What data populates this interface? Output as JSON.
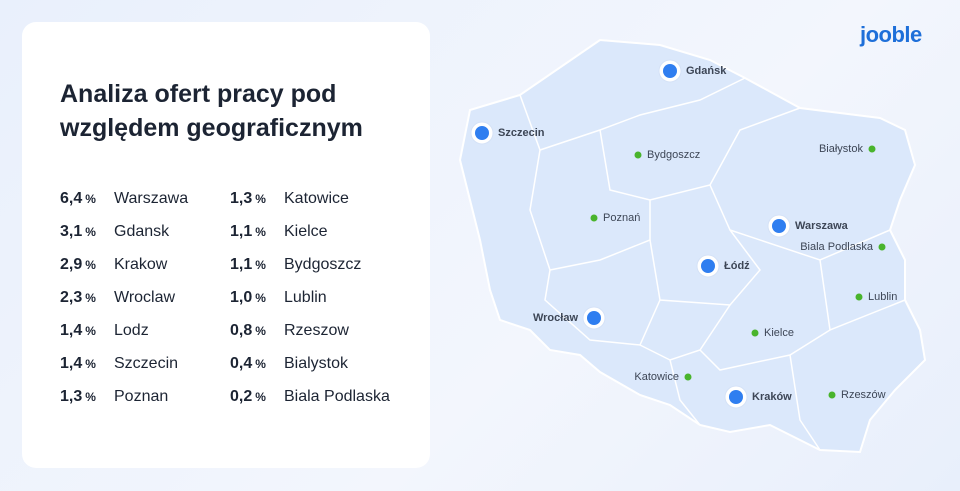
{
  "logo": "jooble",
  "header": {
    "title_lines": [
      "Analiza ofert pracy pod",
      "względem geograficznym"
    ]
  },
  "table": {
    "columns": [
      [
        {
          "value": "6,4",
          "unit": "%",
          "city": "Warszawa"
        },
        {
          "value": "3,1",
          "unit": "%",
          "city": "Gdansk"
        },
        {
          "value": "2,9",
          "unit": "%",
          "city": "Krakow"
        },
        {
          "value": "2,3",
          "unit": "%",
          "city": "Wroclaw"
        },
        {
          "value": "1,4",
          "unit": "%",
          "city": "Lodz"
        },
        {
          "value": "1,4",
          "unit": "%",
          "city": "Szczecin"
        },
        {
          "value": "1,3",
          "unit": "%",
          "city": "Poznan"
        }
      ],
      [
        {
          "value": "1,3",
          "unit": "%",
          "city": "Katowice"
        },
        {
          "value": "1,1",
          "unit": "%",
          "city": "Kielce"
        },
        {
          "value": "1,1",
          "unit": "%",
          "city": "Bydgoszcz"
        },
        {
          "value": "1,0",
          "unit": "%",
          "city": "Lublin"
        },
        {
          "value": "0,8",
          "unit": "%",
          "city": "Rzeszow"
        },
        {
          "value": "0,4",
          "unit": "%",
          "city": "Bialystok"
        },
        {
          "value": "0,2",
          "unit": "%",
          "city": "Biala Podlaska"
        }
      ]
    ]
  },
  "map": {
    "cities": [
      {
        "label": "Gdańsk",
        "kind": "major"
      },
      {
        "label": "Szczecin",
        "kind": "major"
      },
      {
        "label": "Warszawa",
        "kind": "major"
      },
      {
        "label": "Łódź",
        "kind": "major"
      },
      {
        "label": "Wrocław",
        "kind": "major"
      },
      {
        "label": "Kraków",
        "kind": "major"
      },
      {
        "label": "Bydgoszcz",
        "kind": "minor"
      },
      {
        "label": "Białystok",
        "kind": "minor"
      },
      {
        "label": "Poznań",
        "kind": "minor"
      },
      {
        "label": "Biala Podlaska",
        "kind": "minor"
      },
      {
        "label": "Lublin",
        "kind": "minor"
      },
      {
        "label": "Kielce",
        "kind": "minor"
      },
      {
        "label": "Katowice",
        "kind": "minor"
      },
      {
        "label": "Rzeszów",
        "kind": "minor"
      }
    ]
  }
}
